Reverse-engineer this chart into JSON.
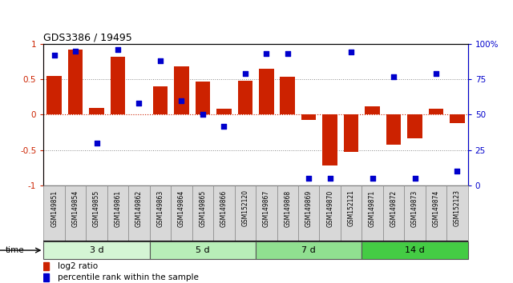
{
  "title": "GDS3386 / 19495",
  "samples": [
    "GSM149851",
    "GSM149854",
    "GSM149855",
    "GSM149861",
    "GSM149862",
    "GSM149863",
    "GSM149864",
    "GSM149865",
    "GSM149866",
    "GSM152120",
    "GSM149867",
    "GSM149868",
    "GSM149869",
    "GSM149870",
    "GSM152121",
    "GSM149871",
    "GSM149872",
    "GSM149873",
    "GSM149874",
    "GSM152123"
  ],
  "log2_ratio": [
    0.55,
    0.92,
    0.09,
    0.82,
    0.0,
    0.4,
    0.68,
    0.47,
    0.08,
    0.48,
    0.65,
    0.54,
    -0.08,
    -0.72,
    -0.53,
    0.12,
    -0.42,
    -0.33,
    0.08,
    -0.12
  ],
  "percentile": [
    92,
    95,
    30,
    96,
    58,
    88,
    60,
    50,
    42,
    79,
    93,
    93,
    5,
    5,
    94,
    5,
    77,
    5,
    79,
    10
  ],
  "groups": [
    {
      "label": "3 d",
      "start": 0,
      "end": 5,
      "color": "#d4f5d4"
    },
    {
      "label": "5 d",
      "start": 5,
      "end": 10,
      "color": "#b8eeb8"
    },
    {
      "label": "7 d",
      "start": 10,
      "end": 15,
      "color": "#90e090"
    },
    {
      "label": "14 d",
      "start": 15,
      "end": 20,
      "color": "#44cc44"
    }
  ],
  "bar_color": "#cc2200",
  "dot_color": "#0000cc",
  "bg_color": "#ffffff",
  "ylim_left": [
    -1,
    1
  ],
  "ylim_right": [
    0,
    100
  ],
  "yticks_left": [
    -1,
    -0.5,
    0,
    0.5,
    1
  ],
  "yticks_left_labels": [
    "-1",
    "-0.5",
    "0",
    "0.5",
    "1"
  ],
  "yticks_right": [
    0,
    25,
    50,
    75,
    100
  ],
  "yticks_right_labels": [
    "0",
    "25",
    "50",
    "75",
    "100%"
  ],
  "cell_color": "#d8d8d8",
  "cell_border": "#888888"
}
